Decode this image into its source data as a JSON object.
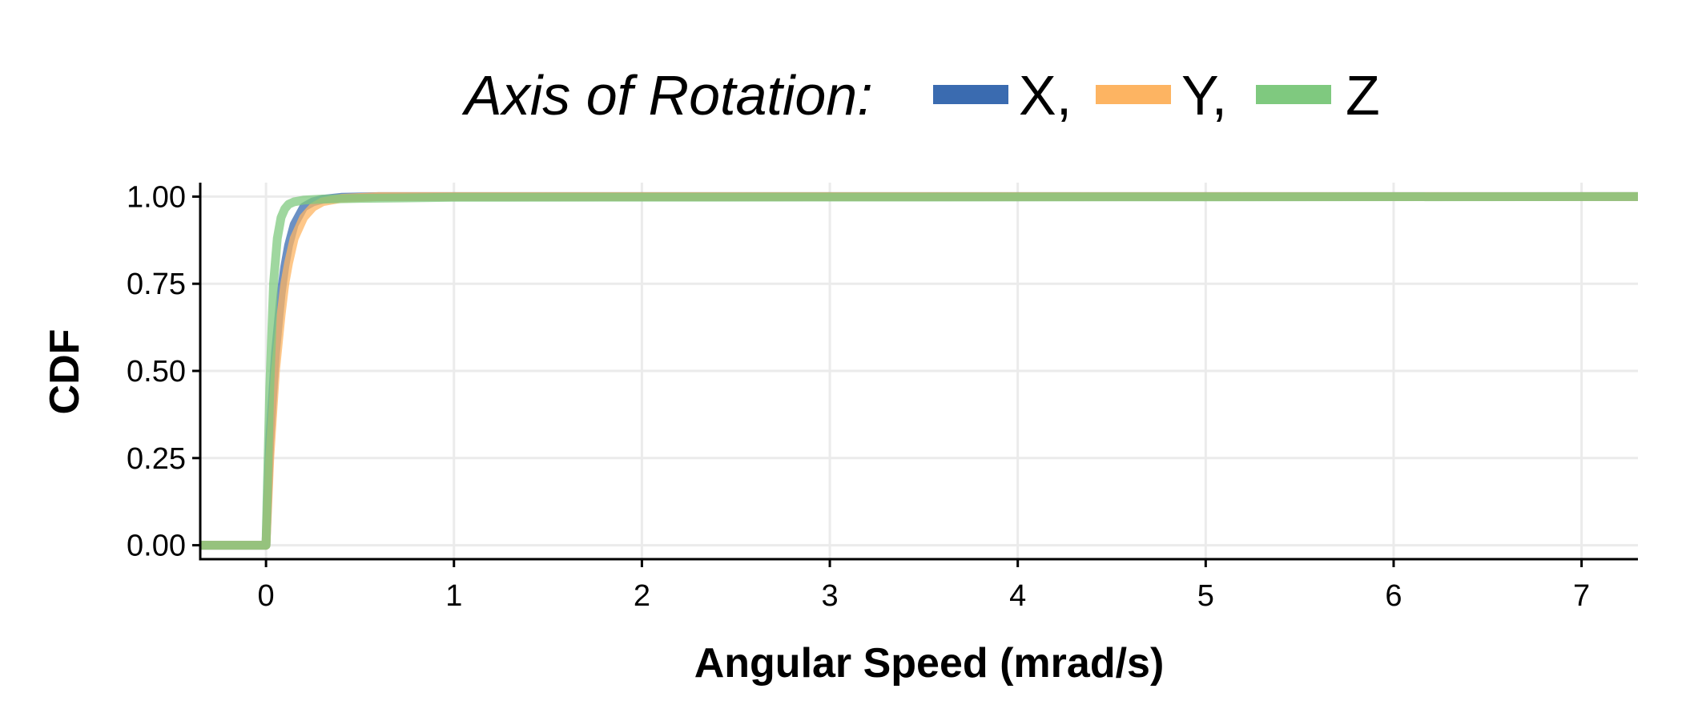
{
  "chart_data": {
    "type": "line",
    "legend": {
      "title": "Axis of Rotation:",
      "position": "top",
      "entries": [
        "X,",
        "Y,",
        "Z"
      ]
    },
    "xlabel": "Angular Speed (mrad/s)",
    "ylabel": "CDF",
    "xlim": [
      -0.35,
      7.3
    ],
    "ylim": [
      -0.04,
      1.04
    ],
    "xticks": [
      0,
      1,
      2,
      3,
      4,
      5,
      6,
      7
    ],
    "yticks": [
      0.0,
      0.25,
      0.5,
      0.75,
      1.0
    ],
    "ytick_labels": [
      "0.00",
      "0.25",
      "0.50",
      "0.75",
      "1.00"
    ],
    "grid": true,
    "series": [
      {
        "name": "X",
        "color": "#3a6bb0",
        "x": [
          -0.35,
          0.0,
          0.02,
          0.05,
          0.08,
          0.1,
          0.12,
          0.15,
          0.2,
          0.25,
          0.3,
          0.4,
          0.6,
          7.3
        ],
        "y": [
          0.0,
          0.0,
          0.3,
          0.55,
          0.72,
          0.8,
          0.86,
          0.92,
          0.97,
          0.985,
          0.992,
          0.998,
          1.0,
          1.0
        ]
      },
      {
        "name": "Y",
        "color": "#fdb462",
        "x": [
          -0.35,
          0.0,
          0.02,
          0.05,
          0.08,
          0.1,
          0.12,
          0.15,
          0.2,
          0.25,
          0.3,
          0.4,
          0.6,
          7.3
        ],
        "y": [
          0.0,
          0.0,
          0.25,
          0.5,
          0.66,
          0.75,
          0.81,
          0.88,
          0.94,
          0.97,
          0.985,
          0.995,
          1.0,
          1.0
        ]
      },
      {
        "name": "Z",
        "color": "#7fc97f",
        "x": [
          -0.35,
          0.0,
          0.02,
          0.04,
          0.06,
          0.08,
          0.1,
          0.12,
          0.15,
          0.2,
          0.3,
          0.5,
          1.0,
          7.3
        ],
        "y": [
          0.0,
          0.0,
          0.45,
          0.75,
          0.88,
          0.94,
          0.965,
          0.978,
          0.985,
          0.99,
          0.993,
          0.995,
          0.998,
          1.0
        ]
      }
    ]
  }
}
